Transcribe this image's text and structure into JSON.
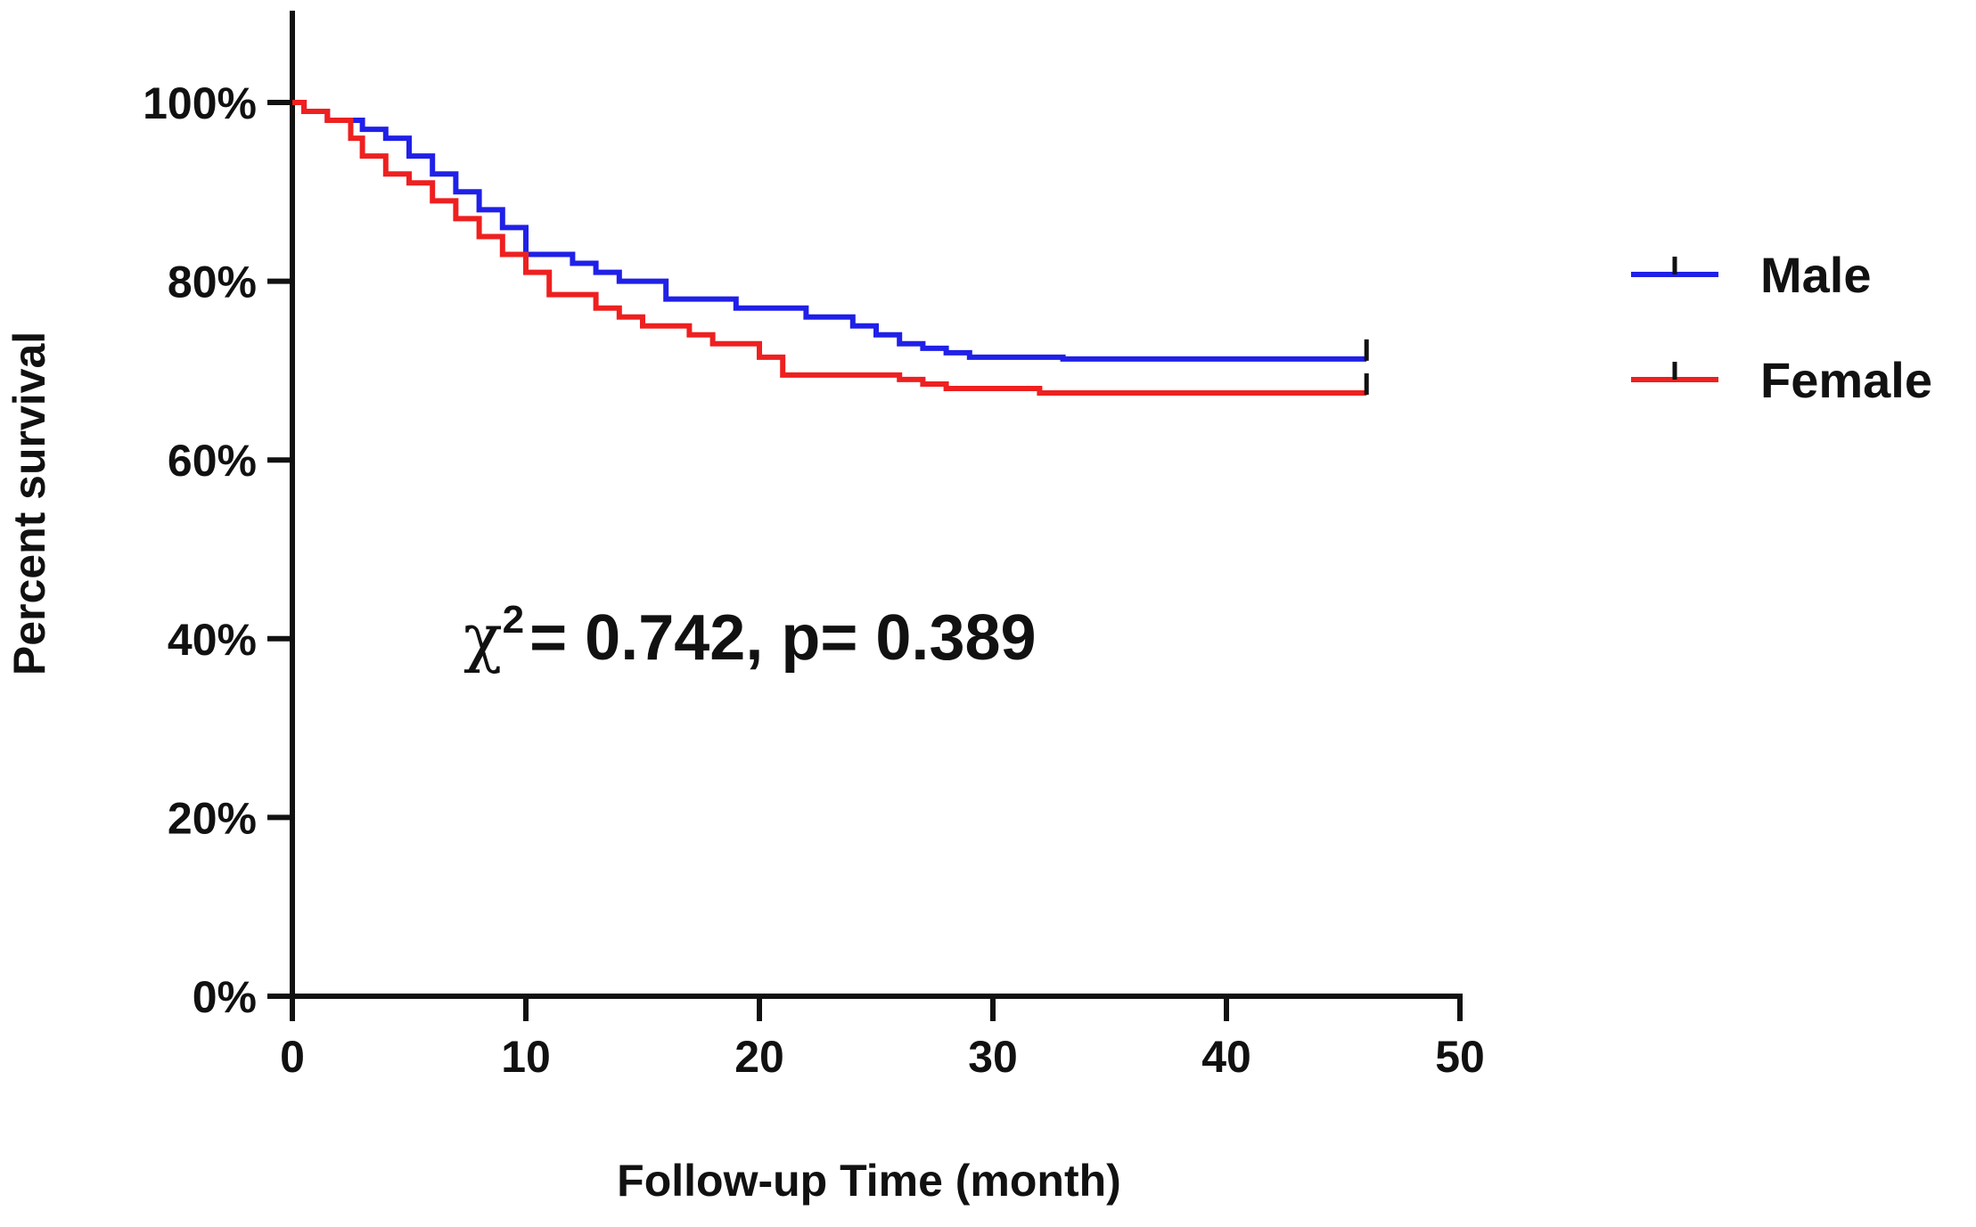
{
  "chart_data": {
    "type": "line",
    "subtype": "kaplan-meier-step",
    "xlabel": "Follow-up Time (month)",
    "ylabel": "Percent survival",
    "xlim": [
      0,
      50
    ],
    "ylim": [
      0,
      100
    ],
    "xticks": [
      "0",
      "10",
      "20",
      "30",
      "40",
      "50"
    ],
    "yticks": [
      "0%",
      "20%",
      "40%",
      "60%",
      "80%",
      "100%"
    ],
    "grid": false,
    "legend_position": "right",
    "annotation": {
      "symbol": "χ",
      "superscript": "2",
      "text": "= 0.742, p= 0.389"
    },
    "series": [
      {
        "name": "Male",
        "color": "#2020e8",
        "x": [
          0,
          0.5,
          1.5,
          3,
          4,
          5,
          6,
          7,
          8,
          9,
          10,
          12,
          13,
          14,
          16,
          19,
          22,
          24,
          25,
          26,
          27,
          28,
          29,
          33,
          46
        ],
        "y": [
          100,
          99,
          98,
          97,
          96,
          94,
          92,
          90,
          88,
          86,
          83,
          82,
          81,
          80,
          78,
          77,
          76,
          75,
          74,
          73,
          72.5,
          72,
          71.5,
          71.3,
          71.3
        ],
        "censored_end": 46
      },
      {
        "name": "Female",
        "color": "#ee2020",
        "x": [
          0,
          0.5,
          1.5,
          2.5,
          3,
          4,
          5,
          6,
          7,
          8,
          9,
          10,
          11,
          13,
          14,
          15,
          17,
          18,
          20,
          21,
          26,
          27,
          28,
          32,
          46
        ],
        "y": [
          100,
          99,
          98,
          96,
          94,
          92,
          91,
          89,
          87,
          85,
          83,
          81,
          78.5,
          77,
          76,
          75,
          74,
          73,
          71.5,
          69.5,
          69,
          68.5,
          68,
          67.5,
          67.5
        ],
        "censored_end": 46
      }
    ]
  }
}
